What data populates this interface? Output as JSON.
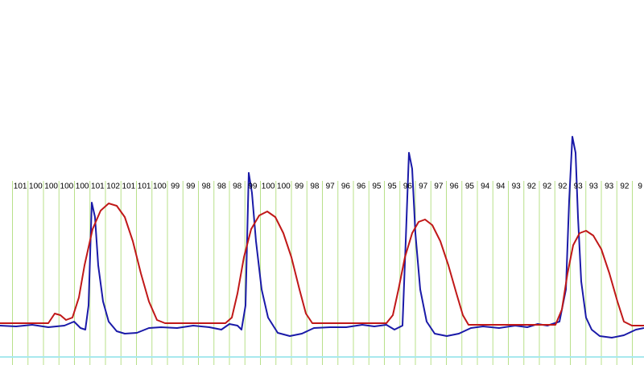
{
  "chart_data": {
    "type": "line",
    "column_labels": [
      101,
      100,
      100,
      100,
      100,
      101,
      102,
      101,
      101,
      100,
      99,
      99,
      98,
      98,
      98,
      99,
      100,
      100,
      99,
      98,
      97,
      96,
      96,
      95,
      95,
      96,
      97,
      97,
      96,
      95,
      94,
      94,
      93,
      92,
      92,
      92,
      93,
      93,
      93,
      92,
      9
    ],
    "xlim": [
      0,
      800
    ],
    "ylim": [
      0,
      454
    ],
    "series": [
      {
        "color": "#1a1aa8",
        "x": [
          0,
          20,
          40,
          60,
          80,
          92,
          100,
          106,
          110,
          114,
          118,
          122,
          128,
          135,
          145,
          155,
          170,
          185,
          200,
          220,
          240,
          260,
          275,
          285,
          295,
          300,
          305,
          309,
          313,
          318,
          325,
          333,
          345,
          360,
          375,
          390,
          410,
          430,
          450,
          465,
          480,
          490,
          500,
          504,
          508,
          512,
          516,
          522,
          530,
          540,
          555,
          570,
          585,
          600,
          620,
          640,
          655,
          668,
          680,
          695,
          703,
          707,
          711,
          715,
          718,
          722,
          728,
          735,
          745,
          760,
          775,
          790,
          800
        ],
        "values": [
          49,
          48,
          50,
          47,
          49,
          54,
          46,
          44,
          74,
          202,
          184,
          124,
          79,
          54,
          42,
          39,
          40,
          46,
          47,
          46,
          49,
          47,
          44,
          51,
          49,
          44,
          74,
          239,
          214,
          154,
          94,
          59,
          40,
          36,
          39,
          46,
          47,
          47,
          50,
          48,
          50,
          44,
          49,
          154,
          264,
          244,
          164,
          94,
          54,
          39,
          36,
          39,
          46,
          48,
          46,
          49,
          47,
          51,
          49,
          54,
          94,
          204,
          284,
          264,
          184,
          104,
          59,
          44,
          36,
          34,
          37,
          44,
          46
        ]
      },
      {
        "color": "#c01818",
        "x": [
          0,
          60,
          68,
          75,
          82,
          90,
          98,
          105,
          115,
          125,
          135,
          145,
          155,
          165,
          175,
          185,
          195,
          205,
          280,
          288,
          295,
          303,
          312,
          322,
          332,
          342,
          352,
          362,
          372,
          380,
          388,
          480,
          488,
          495,
          503,
          512,
          520,
          528,
          537,
          547,
          557,
          567,
          575,
          582,
          690,
          698,
          705,
          712,
          720,
          728,
          737,
          747,
          757,
          767,
          775,
          785,
          800
        ],
        "values": [
          52,
          52,
          64,
          62,
          56,
          59,
          84,
          124,
          169,
          192,
          201,
          198,
          184,
          154,
          114,
          79,
          56,
          52,
          52,
          59,
          89,
          134,
          169,
          186,
          191,
          184,
          164,
          134,
          94,
          64,
          52,
          52,
          62,
          94,
          134,
          164,
          178,
          181,
          174,
          154,
          124,
          89,
          62,
          50,
          50,
          69,
          114,
          149,
          164,
          167,
          161,
          144,
          114,
          79,
          54,
          49,
          49
        ]
      }
    ]
  }
}
